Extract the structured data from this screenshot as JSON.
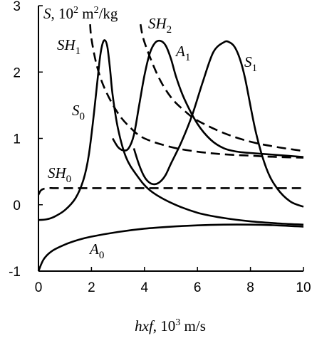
{
  "chart_data": {
    "type": "line",
    "title": "",
    "y_axis_label": {
      "symbol": "S",
      "rest": ", 10",
      "exp": "2",
      "unit": " m",
      "unit_exp": "2",
      "unit_tail": "/kg"
    },
    "x_axis_label": {
      "symbol": "hxf",
      "rest": ", 10",
      "exp": "3",
      "unit": " m/s"
    },
    "xlim": [
      0,
      10
    ],
    "ylim": [
      -1,
      3
    ],
    "x_ticks": [
      "0",
      "2",
      "4",
      "6",
      "8",
      "10"
    ],
    "y_ticks": [
      "-1",
      "0",
      "1",
      "2",
      "3"
    ],
    "grid": false,
    "series": [
      {
        "name": "A0",
        "label_main": "A",
        "label_sub": "0",
        "style": "solid",
        "x": [
          0.0,
          0.2,
          0.5,
          1.0,
          1.5,
          2.0,
          3.0,
          4.0,
          5.0,
          6.0,
          7.0,
          8.0,
          9.0,
          10.0
        ],
        "y": [
          -1.0,
          -0.82,
          -0.7,
          -0.6,
          -0.53,
          -0.48,
          -0.41,
          -0.36,
          -0.33,
          -0.31,
          -0.3,
          -0.3,
          -0.31,
          -0.33
        ]
      },
      {
        "name": "S0",
        "label_main": "S",
        "label_sub": "0",
        "style": "solid",
        "x": [
          0.0,
          0.3,
          0.6,
          1.0,
          1.4,
          1.7,
          1.9,
          2.1,
          2.3,
          2.4,
          2.5,
          2.6,
          2.7,
          2.8,
          3.0,
          3.3,
          3.7,
          4.2,
          5.0,
          6.0,
          7.0,
          8.0,
          9.0,
          10.0
        ],
        "y": [
          -0.23,
          -0.22,
          -0.18,
          -0.08,
          0.1,
          0.38,
          0.75,
          1.4,
          2.15,
          2.4,
          2.48,
          2.38,
          2.05,
          1.65,
          1.15,
          0.72,
          0.45,
          0.22,
          0.03,
          -0.12,
          -0.2,
          -0.25,
          -0.28,
          -0.3
        ]
      },
      {
        "name": "A1",
        "label_main": "A",
        "label_sub": "1",
        "style": "solid",
        "x": [
          2.8,
          3.0,
          3.2,
          3.4,
          3.6,
          3.8,
          4.0,
          4.2,
          4.4,
          4.6,
          4.8,
          5.0,
          5.2,
          5.5,
          6.0,
          6.5,
          7.0,
          7.5,
          8.0,
          9.0,
          10.0
        ],
        "y": [
          1.0,
          0.87,
          0.82,
          0.85,
          1.05,
          1.5,
          1.95,
          2.28,
          2.44,
          2.47,
          2.4,
          2.2,
          1.92,
          1.6,
          1.22,
          0.98,
          0.85,
          0.8,
          0.78,
          0.75,
          0.72
        ]
      },
      {
        "name": "S1",
        "label_main": "S",
        "label_sub": "1",
        "style": "solid",
        "x": [
          3.6,
          3.8,
          4.0,
          4.2,
          4.4,
          4.6,
          4.8,
          5.0,
          5.4,
          5.8,
          6.2,
          6.6,
          7.0,
          7.2,
          7.4,
          7.6,
          7.8,
          8.2,
          8.6,
          9.0,
          9.5,
          10.0
        ],
        "y": [
          0.85,
          0.6,
          0.42,
          0.33,
          0.31,
          0.35,
          0.45,
          0.62,
          0.95,
          1.35,
          1.85,
          2.3,
          2.45,
          2.45,
          2.38,
          2.2,
          1.9,
          1.1,
          0.55,
          0.25,
          0.05,
          -0.03
        ]
      },
      {
        "name": "SH0",
        "label_main": "SH",
        "label_sub": "0",
        "style": "dashed",
        "x": [
          0.0,
          0.1,
          0.3,
          0.6,
          1.0,
          2.0,
          4.0,
          6.0,
          8.0,
          10.0
        ],
        "y": [
          0.15,
          0.22,
          0.25,
          0.25,
          0.25,
          0.25,
          0.25,
          0.25,
          0.25,
          0.25
        ]
      },
      {
        "name": "SH1",
        "label_main": "SH",
        "label_sub": "1",
        "style": "dashed",
        "x": [
          1.95,
          2.0,
          2.2,
          2.5,
          3.0,
          3.5,
          4.0,
          5.0,
          6.0,
          7.0,
          8.0,
          9.0,
          10.0
        ],
        "y": [
          2.72,
          2.5,
          2.1,
          1.75,
          1.38,
          1.15,
          1.0,
          0.87,
          0.8,
          0.76,
          0.74,
          0.72,
          0.71
        ]
      },
      {
        "name": "SH2",
        "label_main": "SH",
        "label_sub": "2",
        "style": "dashed",
        "x": [
          3.85,
          4.0,
          4.5,
          5.0,
          5.5,
          6.0,
          7.0,
          8.0,
          9.0,
          10.0
        ],
        "y": [
          2.72,
          2.45,
          1.95,
          1.62,
          1.42,
          1.27,
          1.08,
          0.95,
          0.87,
          0.81
        ]
      }
    ]
  }
}
